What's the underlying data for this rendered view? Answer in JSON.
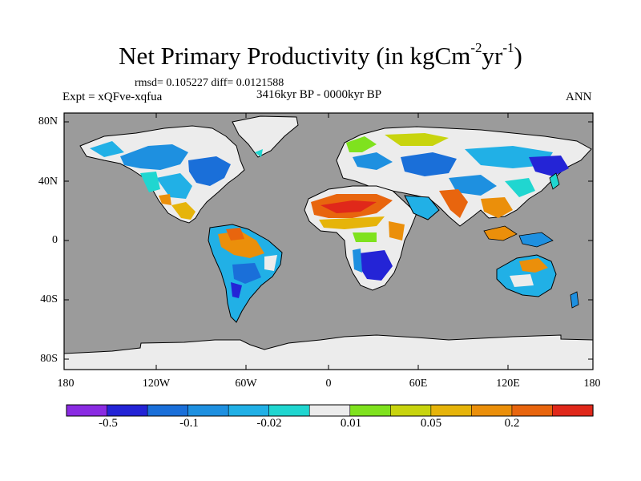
{
  "map": {
    "title_main": "Net Primary Productivity (in kgCm",
    "title_exp1": "-2",
    "title_mid": "yr",
    "title_exp2": "-1",
    "title_end": ")",
    "stats": "rmsd= 0.105227 diff= 0.0121588",
    "experiment": "Expt = xQFve-xqfua",
    "period": "3416kyr BP - 0000kyr BP",
    "season": "ANN",
    "lat_labels": [
      "80N",
      "40N",
      "0",
      "40S",
      "80S"
    ],
    "lon_labels": [
      "180",
      "120W",
      "60W",
      "0",
      "60E",
      "120E",
      "180"
    ]
  },
  "colorbar": {
    "colors": [
      "#8a2be2",
      "#2424d6",
      "#1a6fd9",
      "#1e90e0",
      "#21b0e6",
      "#20d6d0",
      "#ececec",
      "#7fe21e",
      "#c8d40e",
      "#e6b40a",
      "#eb8f0a",
      "#e8650e",
      "#e0281a"
    ],
    "labels": [
      "-0.5",
      "-0.1",
      "-0.02",
      "0.01",
      "0.05",
      "0.2"
    ]
  },
  "legend_colors": {
    "ocean": "#9b9b9b",
    "ice": "#ececec"
  }
}
